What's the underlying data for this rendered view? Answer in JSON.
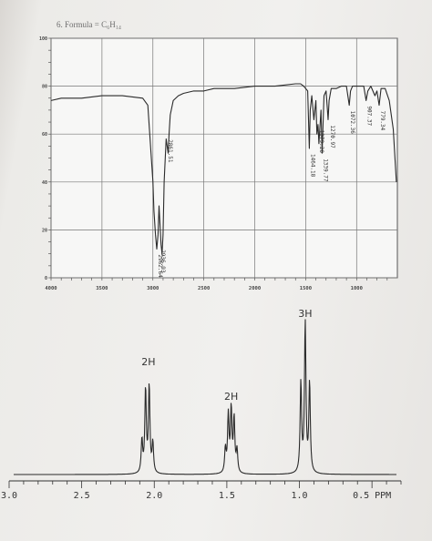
{
  "header": {
    "problem_title": "6.  Formula = C₆H₁₄"
  },
  "chart_data": [
    {
      "type": "line",
      "chart": "ir",
      "x_ticks": [
        "4000",
        "3500",
        "3000",
        "2500",
        "2000",
        "1500",
        "1000"
      ],
      "y_ticks": [
        "100",
        "80",
        "60",
        "40",
        "20",
        "0"
      ],
      "xlim": [
        4000,
        600
      ],
      "ylim": [
        0,
        100
      ],
      "grid": true,
      "x": [
        4000,
        3900,
        3700,
        3500,
        3300,
        3100,
        3050,
        3000,
        2990,
        2975,
        2962,
        2950,
        2940,
        2930,
        2920,
        2910,
        2900,
        2890,
        2870,
        2850,
        2841,
        2830,
        2800,
        2750,
        2700,
        2600,
        2500,
        2400,
        2200,
        2000,
        1800,
        1600,
        1550,
        1520,
        1500,
        1480,
        1464,
        1455,
        1440,
        1420,
        1400,
        1390,
        1379,
        1370,
        1350,
        1339,
        1320,
        1300,
        1280,
        1270,
        1250,
        1200,
        1150,
        1100,
        1072,
        1060,
        1040,
        1000,
        960,
        930,
        907,
        890,
        860,
        820,
        800,
        779,
        760,
        720,
        680,
        640,
        610
      ],
      "y": [
        74,
        75,
        75,
        76,
        76,
        75,
        72,
        40,
        28,
        18,
        12,
        18,
        30,
        22,
        14,
        10,
        18,
        40,
        58,
        52,
        60,
        68,
        74,
        76,
        77,
        78,
        78,
        79,
        79,
        80,
        80,
        81,
        81,
        80,
        79,
        78,
        54,
        70,
        76,
        66,
        74,
        60,
        64,
        56,
        70,
        52,
        76,
        78,
        66,
        74,
        79,
        79,
        80,
        80,
        72,
        78,
        80,
        80,
        80,
        80,
        74,
        78,
        80,
        76,
        78,
        72,
        79,
        79,
        74,
        62,
        40
      ],
      "peak_labels": [
        "2962.64",
        "2936.93",
        "2861.51",
        "1464.18",
        "1379.20",
        "1339.77",
        "1270.97",
        "1072.36",
        "907.37",
        "779.34"
      ],
      "peak_x": [
        2962.64,
        2936.93,
        2861.51,
        1464.18,
        1379.2,
        1339.77,
        1270.97,
        1072.36,
        907.37,
        779.34
      ],
      "peak_y": [
        12,
        14,
        60,
        54,
        64,
        52,
        66,
        72,
        74,
        72
      ]
    },
    {
      "type": "line",
      "chart": "nmr",
      "x_ticks": [
        "3.0",
        "2.5",
        "2.0",
        "1.5",
        "1.0",
        "0.5 PPM"
      ],
      "xlim": [
        3.0,
        0.3
      ],
      "annotations": [
        "2H",
        "2H",
        "3H"
      ],
      "annotation_ppm": [
        2.04,
        1.47,
        0.96
      ],
      "annotation_height": [
        0.68,
        0.45,
        1.0
      ],
      "peaks": [
        {
          "center": 2.04,
          "lines": [
            2.085,
            2.06,
            2.035,
            2.01
          ],
          "heights": [
            0.22,
            0.56,
            0.58,
            0.2
          ]
        },
        {
          "center": 1.47,
          "lines": [
            1.51,
            1.49,
            1.47,
            1.45,
            1.43
          ],
          "heights": [
            0.16,
            0.38,
            0.42,
            0.36,
            0.15
          ]
        },
        {
          "center": 0.96,
          "lines": [
            0.99,
            0.96,
            0.93
          ],
          "heights": [
            0.6,
            1.0,
            0.6
          ]
        }
      ]
    }
  ]
}
